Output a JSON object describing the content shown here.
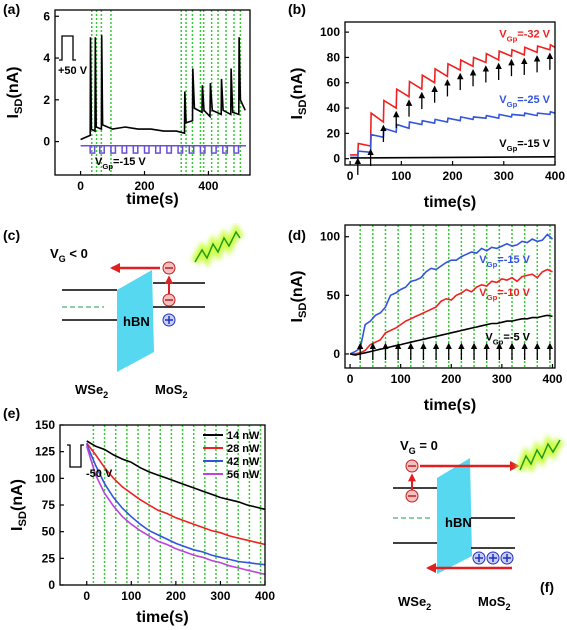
{
  "chart_data": [
    {
      "type": "line",
      "panel": "(a)",
      "xlabel": "time(s)",
      "ylabel": [
        "I",
        "SD",
        "(nA)"
      ],
      "xlim": [
        -80,
        530
      ],
      "ylim": [
        -1.6,
        6.3
      ],
      "xticks": [
        0,
        200,
        400
      ],
      "yticks": [
        0,
        2,
        4,
        6
      ],
      "series": [
        {
          "color": "#000000",
          "x": [
            0,
            30,
            31,
            34,
            45,
            46,
            49,
            65,
            66,
            69,
            100,
            140,
            180,
            220,
            260,
            300,
            325,
            326,
            330,
            350,
            351,
            356,
            380,
            381,
            386,
            405,
            406,
            412,
            440,
            441,
            446,
            470,
            471,
            476,
            495,
            496,
            500,
            515
          ],
          "values": [
            0.1,
            0.3,
            5.0,
            0.6,
            0.5,
            5.0,
            0.7,
            0.6,
            5.1,
            0.8,
            0.6,
            0.7,
            0.6,
            0.6,
            0.5,
            0.5,
            0.4,
            2.4,
            0.9,
            1.0,
            3.5,
            1.6,
            1.4,
            2.7,
            1.5,
            1.2,
            2.8,
            1.5,
            1.3,
            3.0,
            1.5,
            1.3,
            3.5,
            1.4,
            1.3,
            5.0,
            2.0,
            1.5
          ]
        }
      ],
      "gate_pulses": {
        "x": [
          30,
          60,
          95,
          130,
          165,
          200,
          235,
          270,
          305,
          340,
          375,
          410,
          445,
          480
        ],
        "width": 14,
        "high": -0.2,
        "low": -0.55,
        "color": "#6a4fd8"
      },
      "pulse_label": [
        "V",
        "Gp",
        "=-15 V"
      ],
      "light_on": [
        35,
        50,
        65,
        95,
        315,
        330,
        350,
        375,
        385,
        410,
        430,
        455,
        480,
        500
      ],
      "light_color": "#33cc33",
      "inset_label": "+50 V"
    },
    {
      "type": "line",
      "panel": "(b)",
      "xlabel": "time(s)",
      "ylabel": [
        "I",
        "SD",
        "(nA)"
      ],
      "xlim": [
        -10,
        400
      ],
      "ylim": [
        -5,
        108
      ],
      "xticks": [
        0,
        100,
        200,
        300,
        400
      ],
      "yticks": [
        0,
        20,
        40,
        60,
        80,
        100
      ],
      "x": [
        0,
        15,
        16,
        40,
        41,
        65,
        66,
        90,
        91,
        115,
        116,
        140,
        141,
        165,
        166,
        190,
        191,
        215,
        216,
        240,
        241,
        265,
        266,
        290,
        291,
        315,
        316,
        340,
        341,
        365,
        366,
        390,
        391,
        400
      ],
      "series": [
        {
          "color": "#ee2222",
          "label": [
            "V",
            "Gp",
            "=-32 V"
          ],
          "values": [
            3,
            3,
            12,
            10,
            36,
            29,
            46,
            40,
            55,
            49,
            61,
            55,
            66,
            60,
            71,
            65,
            75,
            70,
            78,
            73,
            80,
            76,
            83,
            78,
            85,
            81,
            86,
            82,
            88,
            84,
            89,
            86,
            90,
            88
          ]
        },
        {
          "color": "#3355dd",
          "label": [
            "V",
            "Gp",
            "=-25 V"
          ],
          "values": [
            1,
            1,
            6,
            5,
            19,
            17,
            24,
            21,
            27,
            24,
            29,
            27,
            30,
            28,
            31,
            29,
            32,
            30,
            33,
            31,
            33,
            32,
            34,
            32,
            35,
            33,
            35,
            34,
            36,
            34,
            36,
            35,
            37,
            36
          ]
        },
        {
          "color": "#000000",
          "label": [
            "V",
            "Gp",
            "=-15 V"
          ],
          "x": [
            0,
            400
          ],
          "values": [
            0.5,
            1.5
          ]
        }
      ],
      "arrows": [
        15,
        40,
        65,
        90,
        115,
        140,
        165,
        190,
        215,
        240,
        265,
        290,
        315,
        340,
        365,
        390
      ]
    },
    {
      "type": "line",
      "panel": "(d)",
      "xlabel": "time(s)",
      "ylabel": [
        "I",
        "SD",
        "(nA)"
      ],
      "xlim": [
        -10,
        405
      ],
      "ylim": [
        -12,
        110
      ],
      "xticks": [
        0,
        100,
        200,
        300,
        400
      ],
      "yticks": [
        0,
        50,
        100
      ],
      "x": [
        0,
        10,
        20,
        30,
        40,
        50,
        60,
        70,
        80,
        90,
        100,
        110,
        120,
        130,
        140,
        150,
        160,
        170,
        180,
        190,
        200,
        210,
        220,
        230,
        240,
        250,
        260,
        270,
        280,
        290,
        300,
        310,
        320,
        330,
        340,
        350,
        360,
        370,
        380,
        390,
        400
      ],
      "series": [
        {
          "color": "#3355dd",
          "label": [
            "V",
            "Gp",
            "=-15 V"
          ],
          "values": [
            0,
            2,
            5,
            25,
            28,
            33,
            35,
            40,
            50,
            52,
            55,
            57,
            62,
            63,
            65,
            70,
            73,
            72,
            75,
            78,
            80,
            80,
            83,
            85,
            87,
            86,
            90,
            88,
            91,
            90,
            92,
            94,
            92,
            93,
            96,
            95,
            98,
            96,
            97,
            102,
            98
          ]
        },
        {
          "color": "#ee2222",
          "label": [
            "V",
            "Gp",
            "=-10 V"
          ],
          "values": [
            0,
            0,
            1,
            3,
            8,
            10,
            12,
            18,
            20,
            22,
            25,
            28,
            30,
            32,
            34,
            36,
            38,
            40,
            45,
            47,
            46,
            50,
            52,
            55,
            53,
            57,
            59,
            58,
            62,
            61,
            64,
            63,
            65,
            62,
            66,
            67,
            68,
            65,
            70,
            72,
            70
          ]
        },
        {
          "color": "#000000",
          "label": [
            "V",
            "Gp",
            "=-5 V"
          ],
          "values": [
            0,
            -1,
            0,
            1,
            2,
            3,
            4,
            5,
            6,
            7,
            8,
            9,
            10,
            11,
            12,
            13,
            14,
            15,
            16,
            17,
            18,
            19,
            20,
            21,
            22,
            23,
            24,
            25,
            26,
            26,
            27,
            28,
            28,
            29,
            30,
            30,
            31,
            31,
            32,
            33,
            32
          ]
        }
      ],
      "light_on": [
        20,
        45,
        70,
        95,
        120,
        145,
        170,
        195,
        220,
        245,
        270,
        295,
        320,
        345,
        370,
        395
      ],
      "light_color": "#33cc33",
      "arrows": [
        20,
        45,
        70,
        95,
        120,
        145,
        170,
        195,
        220,
        245,
        270,
        295,
        320,
        345,
        370,
        395
      ]
    },
    {
      "type": "line",
      "panel": "(e)",
      "xlabel": "time(s)",
      "ylabel": [
        "I",
        "SD",
        "(nA)"
      ],
      "xlim": [
        -60,
        400
      ],
      "ylim": [
        0,
        150
      ],
      "xticks": [
        0,
        100,
        200,
        300,
        400
      ],
      "yticks": [
        0,
        25,
        50,
        75,
        100,
        125,
        150
      ],
      "x": [
        0,
        20,
        40,
        60,
        80,
        100,
        120,
        140,
        160,
        180,
        200,
        220,
        240,
        260,
        280,
        300,
        320,
        340,
        360,
        380,
        400
      ],
      "series": [
        {
          "name": "14 nW",
          "color": "#000000",
          "values": [
            135,
            130,
            127,
            122,
            118,
            115,
            110,
            106,
            103,
            100,
            97,
            94,
            91,
            88,
            85,
            82,
            80,
            78,
            75,
            73,
            71
          ]
        },
        {
          "name": "28 nW",
          "color": "#ee2222",
          "values": [
            133,
            122,
            110,
            100,
            92,
            86,
            80,
            75,
            70,
            67,
            63,
            60,
            57,
            54,
            51,
            49,
            46,
            44,
            42,
            40,
            38
          ]
        },
        {
          "name": "42 nW",
          "color": "#3355dd",
          "values": [
            132,
            112,
            95,
            82,
            72,
            64,
            57,
            51,
            47,
            43,
            39,
            36,
            33,
            31,
            28,
            26,
            24,
            22,
            21,
            20,
            19
          ]
        },
        {
          "name": "56 nW",
          "color": "#bb44dd",
          "values": [
            130,
            103,
            86,
            74,
            64,
            57,
            51,
            46,
            41,
            38,
            34,
            31,
            28,
            26,
            23,
            21,
            18,
            16,
            14,
            12,
            10
          ]
        }
      ],
      "legend": "upper right",
      "light_on": [
        15,
        40,
        65,
        90,
        115,
        140,
        165,
        190,
        215,
        240,
        265,
        290,
        315,
        340,
        365,
        390
      ],
      "light_color": "#33cc33",
      "inset_label": "-50 V"
    }
  ],
  "diagrams": [
    {
      "panel": "(c)",
      "gate": [
        "V",
        "G",
        " < 0"
      ],
      "barrier": "hBN",
      "left": [
        "WSe",
        "2"
      ],
      "right": [
        "MoS",
        "2"
      ]
    },
    {
      "panel": "(f)",
      "gate": [
        "V",
        "G",
        " = 0"
      ],
      "barrier": "hBN",
      "left": [
        "WSe",
        "2"
      ],
      "right": [
        "MoS",
        "2"
      ]
    }
  ]
}
